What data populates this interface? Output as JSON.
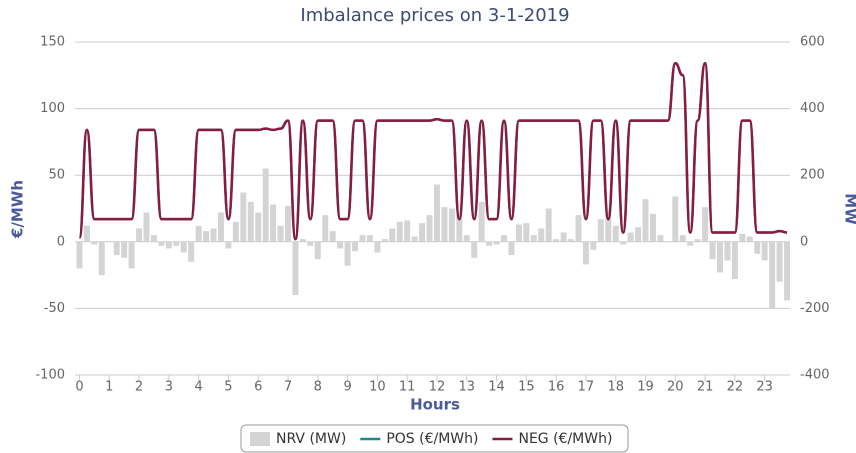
{
  "chart_data": {
    "type": "combo",
    "title": "Imbalance prices on 3-1-2019",
    "x_label": "Hours",
    "y_label": "€/MWh",
    "y2_label": "MW",
    "x": [
      0,
      0.25,
      0.5,
      0.75,
      1,
      1.25,
      1.5,
      1.75,
      2,
      2.25,
      2.5,
      2.75,
      3,
      3.25,
      3.5,
      3.75,
      4,
      4.25,
      4.5,
      4.75,
      5,
      5.25,
      5.5,
      5.75,
      6,
      6.25,
      6.5,
      6.75,
      7,
      7.25,
      7.5,
      7.75,
      8,
      8.25,
      8.5,
      8.75,
      9,
      9.25,
      9.5,
      9.75,
      10,
      10.25,
      10.5,
      10.75,
      11,
      11.25,
      11.5,
      11.75,
      12,
      12.25,
      12.5,
      12.75,
      13,
      13.25,
      13.5,
      13.75,
      14,
      14.25,
      14.5,
      14.75,
      15,
      15.25,
      15.5,
      15.75,
      16,
      16.25,
      16.5,
      16.75,
      17,
      17.25,
      17.5,
      17.75,
      18,
      18.25,
      18.5,
      18.75,
      19,
      19.25,
      19.5,
      19.75,
      20,
      20.25,
      20.5,
      20.75,
      21,
      21.25,
      21.5,
      21.75,
      22,
      22.25,
      22.5,
      22.75,
      23,
      23.25,
      23.5,
      23.75
    ],
    "series": [
      {
        "name": "NRV (MW)",
        "type": "bar",
        "axis": "y2",
        "color": "#d4d4d4",
        "values": [
          -80,
          48,
          -8,
          -100,
          0,
          -40,
          -48,
          -80,
          40,
          88,
          20,
          -12,
          -20,
          -12,
          -32,
          -60,
          48,
          32,
          40,
          88,
          -20,
          60,
          148,
          120,
          88,
          220,
          112,
          48,
          108,
          -160,
          8,
          -12,
          -52,
          80,
          32,
          -20,
          -72,
          -28,
          20,
          20,
          -32,
          8,
          40,
          60,
          64,
          16,
          56,
          80,
          172,
          104,
          100,
          80,
          20,
          -48,
          120,
          -12,
          -8,
          20,
          -40,
          52,
          56,
          20,
          40,
          100,
          8,
          28,
          8,
          80,
          -68,
          -24,
          68,
          100,
          48,
          -8,
          28,
          44,
          128,
          84,
          20,
          0,
          136,
          20,
          -12,
          8,
          104,
          -52,
          -92,
          -56,
          -112,
          24,
          16,
          -36,
          -56,
          -200,
          -120,
          -176
        ]
      },
      {
        "name": "POS (€/MWh)",
        "type": "line",
        "color": "#1a8a8a",
        "values": [
          3,
          84,
          17,
          17,
          17,
          17,
          17,
          17,
          84,
          84,
          84,
          17,
          17,
          17,
          17,
          17,
          84,
          84,
          84,
          84,
          17,
          84,
          84,
          84,
          84,
          85,
          84,
          85,
          91,
          2,
          91,
          17,
          91,
          91,
          91,
          17,
          17,
          91,
          91,
          17,
          91,
          91,
          91,
          91,
          91,
          91,
          91,
          91,
          92,
          91,
          91,
          17,
          91,
          17,
          91,
          17,
          17,
          91,
          17,
          91,
          91,
          91,
          91,
          91,
          91,
          91,
          91,
          91,
          17,
          91,
          91,
          17,
          91,
          7,
          91,
          91,
          91,
          91,
          91,
          91,
          134,
          125,
          7,
          91,
          134,
          7,
          7,
          7,
          7,
          91,
          91,
          7,
          7,
          7,
          8,
          7
        ]
      },
      {
        "name": "NEG (€/MWh)",
        "type": "line",
        "color": "#8b1a3e",
        "values": [
          3,
          84,
          17,
          17,
          17,
          17,
          17,
          17,
          84,
          84,
          84,
          17,
          17,
          17,
          17,
          17,
          84,
          84,
          84,
          84,
          17,
          84,
          84,
          84,
          84,
          85,
          84,
          85,
          91,
          2,
          91,
          17,
          91,
          91,
          91,
          17,
          17,
          91,
          91,
          17,
          91,
          91,
          91,
          91,
          91,
          91,
          91,
          91,
          92,
          91,
          91,
          17,
          91,
          17,
          91,
          17,
          17,
          91,
          17,
          91,
          91,
          91,
          91,
          91,
          91,
          91,
          91,
          91,
          17,
          91,
          91,
          17,
          91,
          7,
          91,
          91,
          91,
          91,
          91,
          91,
          134,
          125,
          7,
          91,
          134,
          7,
          7,
          7,
          7,
          91,
          91,
          7,
          7,
          7,
          8,
          7
        ]
      }
    ],
    "xlim": [
      -0.15,
      23.85
    ],
    "xticks": [
      0,
      1,
      2,
      3,
      4,
      5,
      6,
      7,
      8,
      9,
      10,
      11,
      12,
      13,
      14,
      15,
      16,
      17,
      18,
      19,
      20,
      21,
      22,
      23
    ],
    "ylim": [
      -100,
      150
    ],
    "yticks": [
      -100,
      -50,
      0,
      50,
      100,
      150
    ],
    "y2lim": [
      -400,
      600
    ],
    "y2ticks": [
      -400,
      -200,
      0,
      200,
      400,
      600
    ],
    "grid": true,
    "legend": "bottom"
  }
}
